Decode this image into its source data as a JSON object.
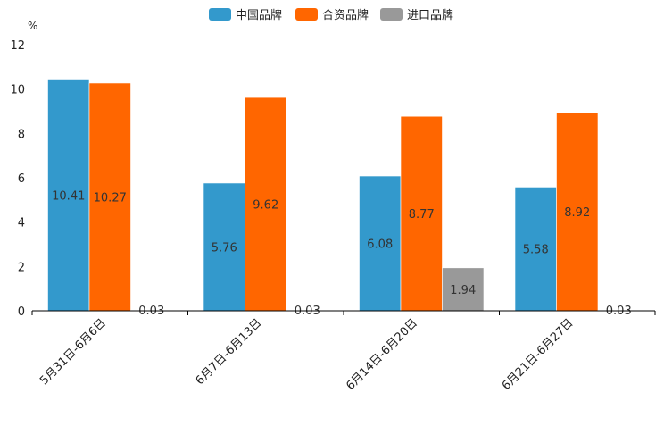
{
  "chart_data": {
    "type": "bar",
    "title": "",
    "xlabel": "",
    "ylabel": "%",
    "ylim": [
      0,
      12
    ],
    "yticks": [
      0,
      2,
      4,
      6,
      8,
      10,
      12
    ],
    "categories": [
      "5月31日-6月6日",
      "6月7日-6月13日",
      "6月14日-6月20日",
      "6月21日-6月27日"
    ],
    "series": [
      {
        "name": "中国品牌",
        "color": "#3399cc",
        "values": [
          10.41,
          5.76,
          6.08,
          5.58
        ],
        "labels": [
          "10.41",
          "5.76",
          "6.08",
          "5.58"
        ]
      },
      {
        "name": "合资品牌",
        "color": "#ff6600",
        "values": [
          10.27,
          9.62,
          8.77,
          8.92
        ],
        "labels": [
          "10.27",
          "9.62",
          "8.77",
          "8.92"
        ]
      },
      {
        "name": "进口品牌",
        "color": "#999999",
        "values": [
          0.03,
          0.03,
          1.94,
          0.03
        ],
        "labels": [
          "0.03",
          "0.03",
          "1.94",
          "0.03"
        ]
      }
    ],
    "legend_position": "top-center",
    "grid": false
  }
}
